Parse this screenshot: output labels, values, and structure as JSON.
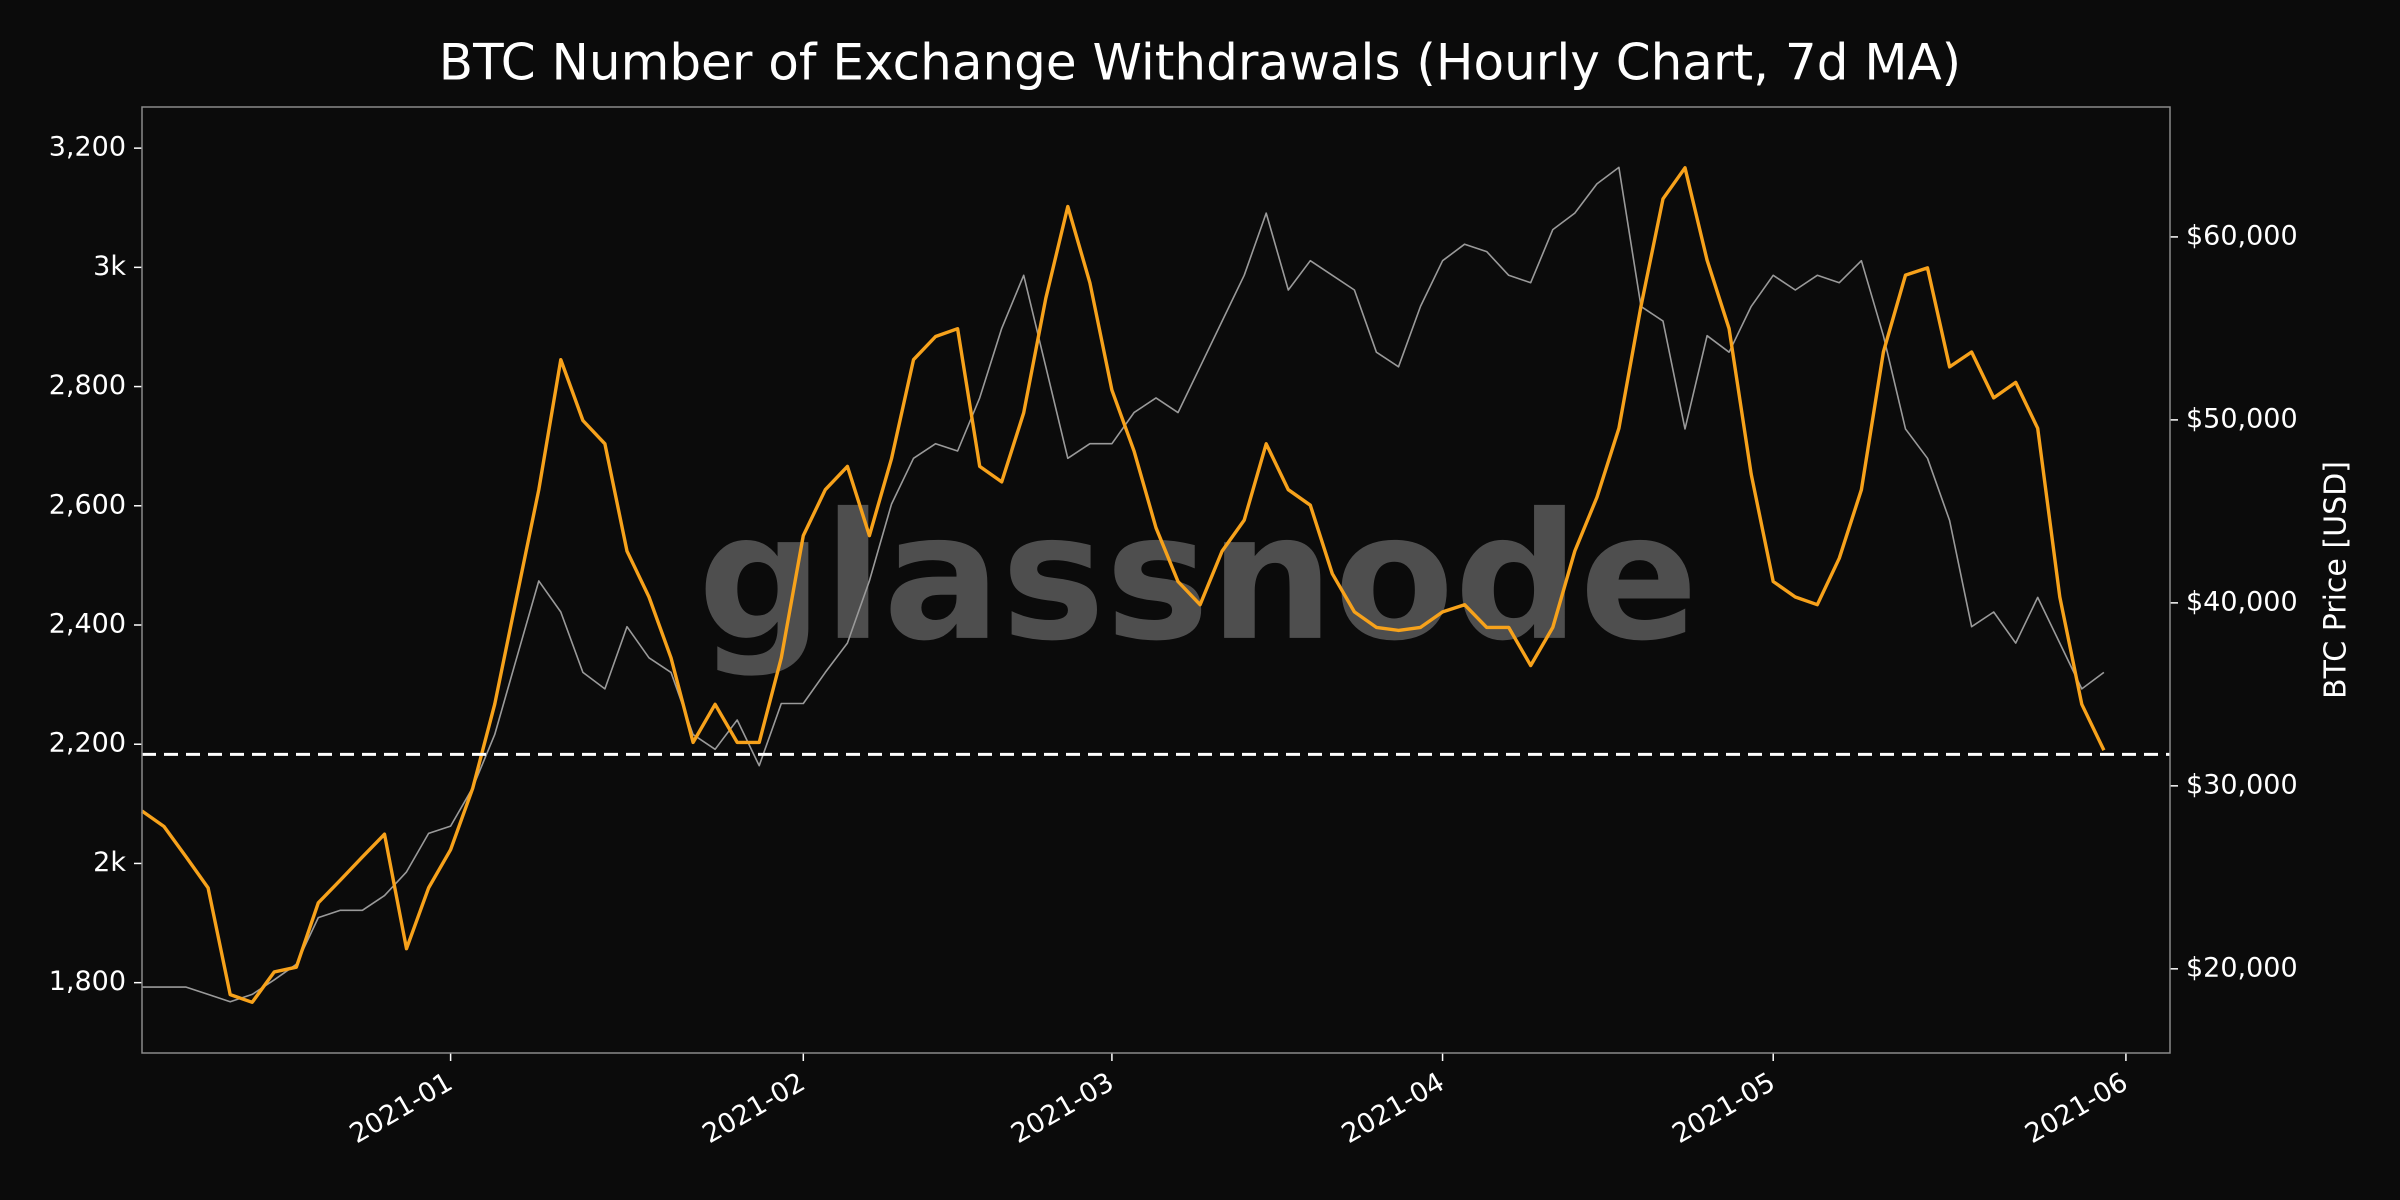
{
  "chart_data": {
    "type": "line",
    "title": "BTC Number of Exchange Withdrawals (Hourly Chart, 7d MA)",
    "y2label": "BTC Price [USD]",
    "watermark": "glassnode",
    "categories": [
      null,
      null,
      null,
      null,
      null,
      null,
      null,
      null,
      null,
      null,
      null,
      null,
      null,
      null,
      "2021-01",
      null,
      null,
      null,
      null,
      null,
      null,
      null,
      null,
      null,
      null,
      null,
      null,
      null,
      null,
      null,
      "2021-02",
      null,
      null,
      null,
      null,
      null,
      null,
      null,
      null,
      null,
      null,
      null,
      null,
      null,
      "2021-03",
      null,
      null,
      null,
      null,
      null,
      null,
      null,
      null,
      null,
      null,
      null,
      null,
      null,
      null,
      "2021-04",
      null,
      null,
      null,
      null,
      null,
      null,
      null,
      null,
      null,
      null,
      null,
      null,
      null,
      null,
      "2021-05",
      null,
      null,
      null,
      null,
      null,
      null,
      null,
      null,
      null,
      null,
      null,
      null,
      null,
      null,
      null,
      "2021-06",
      null,
      null
    ],
    "series": [
      {
        "axis": "y2",
        "color": "#9a9a9a",
        "values": [
          19000,
          19000,
          19000,
          18600,
          18200,
          18600,
          19400,
          20250,
          22800,
          23200,
          23200,
          24000,
          25300,
          27400,
          27800,
          29900,
          32800,
          37000,
          41200,
          39500,
          36200,
          35300,
          38700,
          37000,
          36200,
          32800,
          32000,
          33600,
          31100,
          34500,
          34500,
          36200,
          37800,
          41200,
          45400,
          47900,
          48700,
          48300,
          51200,
          55000,
          57900,
          52900,
          47900,
          48700,
          48700,
          50400,
          51200,
          50400,
          52900,
          55400,
          57900,
          61300,
          57100,
          58700,
          57900,
          57100,
          53700,
          52900,
          56200,
          58700,
          59600,
          59200,
          57900,
          57500,
          60400,
          61300,
          62900,
          63800,
          56200,
          55400,
          49500,
          54600,
          53700,
          56200,
          57900,
          57100,
          57900,
          57500,
          58700,
          54600,
          49500,
          47900,
          44500,
          38700,
          39500,
          37800,
          40300,
          37800,
          35300,
          36200,
          null,
          null,
          null
        ]
      },
      {
        "color": "#f7a21b",
        "values": [
          2088,
          2062,
          2011,
          1959,
          1780,
          1767,
          1818,
          1826,
          1934,
          1972,
          2011,
          2049,
          1857,
          1959,
          2023,
          2126,
          2267,
          2447,
          2627,
          2845,
          2743,
          2704,
          2524,
          2447,
          2345,
          2203,
          2267,
          2203,
          2203,
          2345,
          2550,
          2627,
          2666,
          2550,
          2679,
          2845,
          2884,
          2897,
          2666,
          2640,
          2756,
          2948,
          3102,
          2974,
          2794,
          2692,
          2563,
          2473,
          2434,
          2524,
          2576,
          2704,
          2627,
          2601,
          2486,
          2422,
          2396,
          2391,
          2396,
          2422,
          2434,
          2396,
          2396,
          2332,
          2396,
          2524,
          2614,
          2730,
          2935,
          3115,
          3167,
          3012,
          2897,
          2653,
          2473,
          2447,
          2434,
          2512,
          2627,
          2858,
          2987,
          2999,
          2833,
          2858,
          2781,
          2807,
          2730,
          2447,
          2267,
          2190,
          null,
          null,
          null
        ]
      }
    ],
    "reference_line": 2183,
    "ylim": [
      1682,
      3269
    ],
    "yticks": [
      {
        "value": 1800,
        "label": "1,800"
      },
      {
        "value": 2000,
        "label": "2k"
      },
      {
        "value": 2200,
        "label": "2,200"
      },
      {
        "value": 2400,
        "label": "2,400"
      },
      {
        "value": 2600,
        "label": "2,600"
      },
      {
        "value": 2800,
        "label": "2,800"
      },
      {
        "value": 3000,
        "label": "3k"
      },
      {
        "value": 3200,
        "label": "3,200"
      }
    ],
    "y2lim": [
      15400,
      67100
    ],
    "y2ticks": [
      {
        "value": 20000,
        "label": "$20,000"
      },
      {
        "value": 30000,
        "label": "$30,000"
      },
      {
        "value": 40000,
        "label": "$40,000"
      },
      {
        "value": 50000,
        "label": "$50,000"
      },
      {
        "value": 60000,
        "label": "$60,000"
      }
    ],
    "grid": false
  }
}
